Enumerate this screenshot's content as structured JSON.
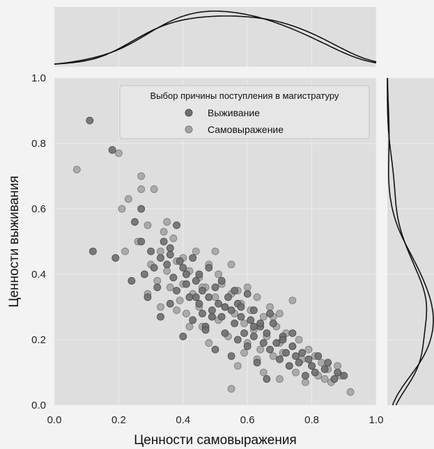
{
  "chart_data": {
    "type": "scatter",
    "title": "",
    "xlabel": "Ценности самовыражения",
    "ylabel": "Ценности выживания",
    "xlim": [
      0.0,
      1.0
    ],
    "ylim": [
      0.0,
      1.0
    ],
    "x_ticks": [
      "0.0",
      "0.2",
      "0.4",
      "0.6",
      "0.8",
      "1.0"
    ],
    "y_ticks": [
      "0.0",
      "0.2",
      "0.4",
      "0.6",
      "0.8",
      "1.0"
    ],
    "grid": true,
    "marginal_density": true,
    "legend": {
      "title": "Выбор причины поступления в магистратуру",
      "placement": "top-right",
      "entries": [
        "Выживание",
        "Самовыражение"
      ]
    },
    "colors": {
      "Выживание": "#6e6e6e",
      "Самовыражение": "#a4a4a4",
      "panel_bg": "#dedede",
      "page_bg": "#f3f3f3"
    },
    "series": [
      {
        "name": "Выживание",
        "x": [
          0.11,
          0.12,
          0.18,
          0.19,
          0.24,
          0.25,
          0.27,
          0.27,
          0.28,
          0.29,
          0.3,
          0.31,
          0.32,
          0.33,
          0.33,
          0.34,
          0.35,
          0.36,
          0.36,
          0.37,
          0.38,
          0.38,
          0.39,
          0.4,
          0.4,
          0.41,
          0.42,
          0.43,
          0.43,
          0.44,
          0.45,
          0.45,
          0.46,
          0.46,
          0.47,
          0.48,
          0.48,
          0.49,
          0.5,
          0.5,
          0.51,
          0.52,
          0.52,
          0.53,
          0.54,
          0.55,
          0.55,
          0.56,
          0.57,
          0.57,
          0.58,
          0.59,
          0.6,
          0.6,
          0.61,
          0.62,
          0.62,
          0.63,
          0.64,
          0.65,
          0.66,
          0.66,
          0.67,
          0.68,
          0.69,
          0.7,
          0.71,
          0.72,
          0.73,
          0.74,
          0.75,
          0.76,
          0.77,
          0.78,
          0.79,
          0.8,
          0.81,
          0.82,
          0.84,
          0.85,
          0.87,
          0.88,
          0.9,
          0.58,
          0.49,
          0.44,
          0.64,
          0.71,
          0.53,
          0.41,
          0.36,
          0.62,
          0.56,
          0.47,
          0.67,
          0.74
        ],
        "y": [
          0.87,
          0.47,
          0.78,
          0.45,
          0.38,
          0.56,
          0.6,
          0.5,
          0.4,
          0.33,
          0.47,
          0.42,
          0.36,
          0.45,
          0.27,
          0.5,
          0.43,
          0.48,
          0.31,
          0.39,
          0.55,
          0.35,
          0.44,
          0.42,
          0.21,
          0.37,
          0.33,
          0.45,
          0.26,
          0.38,
          0.31,
          0.4,
          0.28,
          0.35,
          0.24,
          0.33,
          0.42,
          0.29,
          0.36,
          0.17,
          0.31,
          0.27,
          0.38,
          0.22,
          0.33,
          0.29,
          0.15,
          0.25,
          0.31,
          0.2,
          0.27,
          0.22,
          0.34,
          0.18,
          0.26,
          0.21,
          0.29,
          0.13,
          0.24,
          0.19,
          0.22,
          0.08,
          0.17,
          0.25,
          0.19,
          0.14,
          0.21,
          0.16,
          0.12,
          0.18,
          0.15,
          0.13,
          0.16,
          0.09,
          0.14,
          0.12,
          0.1,
          0.15,
          0.11,
          0.13,
          0.08,
          0.1,
          0.09,
          0.3,
          0.27,
          0.33,
          0.25,
          0.2,
          0.3,
          0.4,
          0.46,
          0.24,
          0.35,
          0.23,
          0.28,
          0.22
        ]
      },
      {
        "name": "Самовыражение",
        "x": [
          0.07,
          0.2,
          0.21,
          0.22,
          0.23,
          0.26,
          0.27,
          0.27,
          0.29,
          0.3,
          0.31,
          0.32,
          0.33,
          0.34,
          0.35,
          0.35,
          0.36,
          0.37,
          0.38,
          0.39,
          0.4,
          0.4,
          0.41,
          0.42,
          0.43,
          0.44,
          0.45,
          0.45,
          0.46,
          0.47,
          0.48,
          0.49,
          0.5,
          0.5,
          0.51,
          0.52,
          0.53,
          0.54,
          0.55,
          0.55,
          0.56,
          0.57,
          0.58,
          0.59,
          0.6,
          0.6,
          0.61,
          0.62,
          0.63,
          0.64,
          0.65,
          0.65,
          0.66,
          0.67,
          0.68,
          0.69,
          0.7,
          0.7,
          0.71,
          0.72,
          0.73,
          0.74,
          0.75,
          0.76,
          0.77,
          0.78,
          0.79,
          0.8,
          0.81,
          0.82,
          0.83,
          0.84,
          0.85,
          0.86,
          0.88,
          0.89,
          0.92,
          0.55,
          0.63,
          0.48,
          0.7,
          0.57,
          0.42,
          0.33,
          0.29,
          0.74,
          0.68,
          0.51,
          0.59,
          0.46,
          0.38
        ],
        "y": [
          0.72,
          0.77,
          0.6,
          0.47,
          0.63,
          0.5,
          0.7,
          0.66,
          0.55,
          0.43,
          0.66,
          0.38,
          0.47,
          0.53,
          0.41,
          0.56,
          0.36,
          0.51,
          0.44,
          0.32,
          0.45,
          0.37,
          0.28,
          0.41,
          0.34,
          0.47,
          0.3,
          0.39,
          0.24,
          0.36,
          0.43,
          0.27,
          0.33,
          0.47,
          0.26,
          0.37,
          0.3,
          0.21,
          0.34,
          0.43,
          0.28,
          0.12,
          0.31,
          0.25,
          0.19,
          0.36,
          0.29,
          0.23,
          0.33,
          0.17,
          0.27,
          0.1,
          0.21,
          0.3,
          0.15,
          0.24,
          0.19,
          0.08,
          0.16,
          0.22,
          0.12,
          0.18,
          0.1,
          0.2,
          0.14,
          0.07,
          0.17,
          0.12,
          0.15,
          0.09,
          0.13,
          0.08,
          0.11,
          0.07,
          0.12,
          0.09,
          0.04,
          0.05,
          0.14,
          0.19,
          0.28,
          0.35,
          0.24,
          0.3,
          0.34,
          0.32,
          0.27,
          0.4,
          0.16,
          0.36,
          0.29
        ]
      }
    ]
  }
}
